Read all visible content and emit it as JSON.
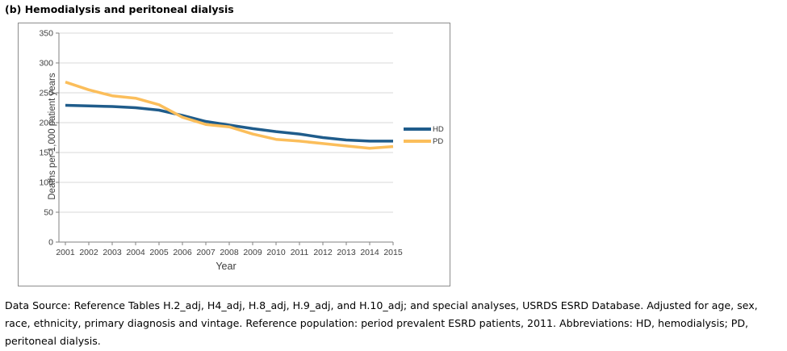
{
  "page": {
    "title": "(b) Hemodialysis and peritoneal dialysis",
    "footer": "Data Source: Reference Tables H.2_adj, H4_adj, H.8_adj, H.9_adj, and H.10_adj; and special analyses, USRDS ESRD Database. Adjusted for age, sex, race, ethnicity, primary diagnosis and vintage. Reference population: period prevalent ESRD patients, 2011. Abbreviations: HD, hemodialysis; PD, peritoneal dialysis."
  },
  "chart_data": {
    "type": "line",
    "title": "(b) Hemodialysis and peritoneal dialysis",
    "xlabel": "Year",
    "ylabel": "Deaths per 1,000 patient years",
    "categories": [
      "2001",
      "2002",
      "2003",
      "2004",
      "2005",
      "2006",
      "2007",
      "2008",
      "2009",
      "2010",
      "2011",
      "2012",
      "2013",
      "2014",
      "2015"
    ],
    "yticks": [
      0,
      50,
      100,
      150,
      200,
      250,
      300,
      350
    ],
    "ylim": [
      0,
      350
    ],
    "grid": true,
    "legend_position": "right",
    "series": [
      {
        "name": "HD",
        "color": "#1F5C8B",
        "values": [
          229,
          228,
          227,
          225,
          221,
          212,
          202,
          196,
          190,
          185,
          181,
          175,
          171,
          169,
          169
        ]
      },
      {
        "name": "PD",
        "color": "#FBBE5B",
        "values": [
          268,
          255,
          245,
          241,
          230,
          209,
          197,
          193,
          181,
          172,
          169,
          165,
          161,
          157,
          160
        ]
      }
    ],
    "colors": {
      "axis": "#808080",
      "grid": "#d9d9d9",
      "tick_text": "#404040",
      "frame_border": "#8c8c8c"
    }
  }
}
